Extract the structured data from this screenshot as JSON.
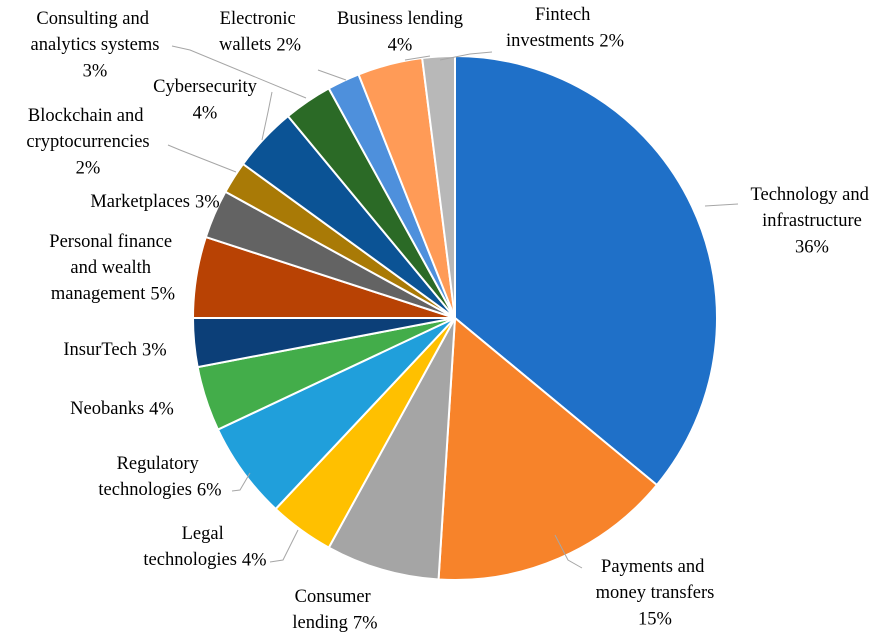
{
  "chart_data": {
    "type": "pie",
    "categories": [
      "Technology and infrastructure",
      "Payments and money transfers",
      "Consumer lending",
      "Legal technologies",
      "Regulatory technologies",
      "Neobanks",
      "InsurTech",
      "Personal finance and wealth management",
      "Marketplaces",
      "Blockchain and cryptocurrencies",
      "Cybersecurity",
      "Consulting and analytics systems",
      "Electronic wallets",
      "Business lending",
      "Fintech investments"
    ],
    "values": [
      36,
      15,
      7,
      4,
      6,
      4,
      3,
      5,
      3,
      2,
      4,
      3,
      2,
      4,
      2
    ],
    "value_labels": [
      "36%",
      "15%",
      "7%",
      "4%",
      "6%",
      "4%",
      "3%",
      "5%",
      "3%",
      "2%",
      "4%",
      "3%",
      "2%",
      "4%",
      "2%"
    ],
    "colors": [
      "#1f70c8",
      "#f7832a",
      "#a5a5a5",
      "#ffc000",
      "#209fdb",
      "#43ad4a",
      "#0c3f78",
      "#b84204",
      "#636363",
      "#a97a06",
      "#0b5395",
      "#2b6a26",
      "#4e90dc",
      "#ff9b57",
      "#b8b8b8"
    ]
  }
}
